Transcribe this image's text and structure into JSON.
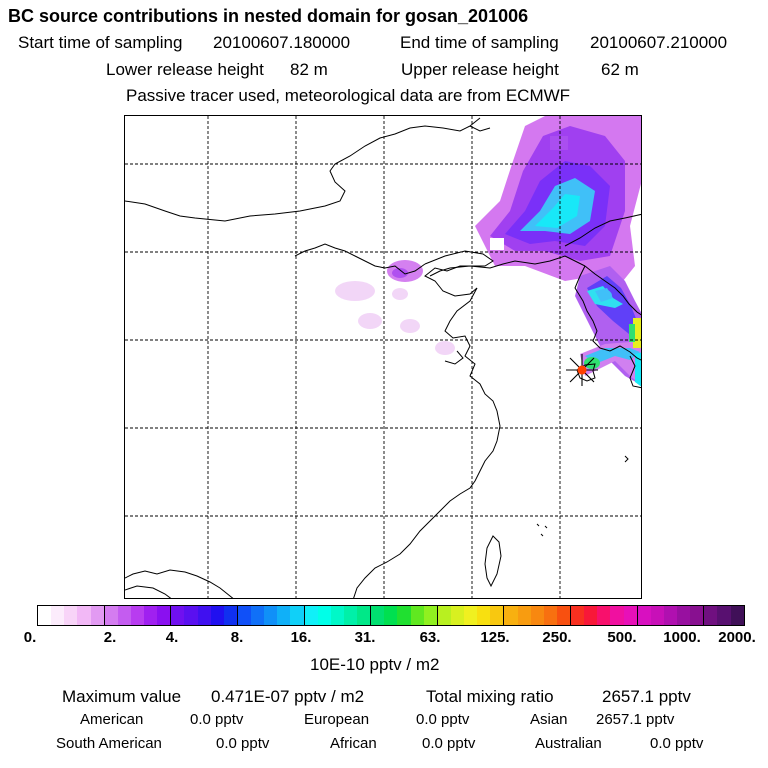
{
  "header": {
    "title": "BC  source contributions in nested domain for gosan_201006",
    "start_label": "Start time of sampling",
    "start_value": "20100607.180000",
    "end_label": "End time of sampling",
    "end_value": "20100607.210000",
    "lower_label": "Lower release height",
    "lower_value": "82 m",
    "upper_label": "Upper release height",
    "upper_value": "62 m",
    "subtitle": "Passive tracer used, meteorological data are from ECMWF"
  },
  "colorbar": {
    "tick_labels": [
      "0.",
      "2.",
      "4.",
      "8.",
      "16.",
      "31.",
      "63.",
      "125.",
      "250.",
      "500.",
      "1000.",
      "2000."
    ],
    "colors": [
      "#ffffff",
      "#fcecfc",
      "#f8d4f8",
      "#f2b8f6",
      "#e29af2",
      "#d47cf0",
      "#c45cf0",
      "#b83cf0",
      "#a020f0",
      "#8a10f0",
      "#7010f0",
      "#5a10f0",
      "#4010f0",
      "#2010f0",
      "#1030f0",
      "#1050f8",
      "#1070f8",
      "#1090f8",
      "#10b0f8",
      "#10d0f8",
      "#10f0f8",
      "#00ffe8",
      "#00f8c8",
      "#00f0a8",
      "#00e888",
      "#00e070",
      "#00e050",
      "#20e030",
      "#60e820",
      "#90f020",
      "#b8f020",
      "#d8f020",
      "#f0f020",
      "#f8e010",
      "#f8c810",
      "#f8b010",
      "#f89c10",
      "#f88810",
      "#f87010",
      "#f85010",
      "#f83020",
      "#f81838",
      "#f8106c",
      "#f010a0",
      "#e810b8",
      "#d810c0",
      "#c810b8",
      "#b010b0",
      "#9810a0",
      "#881090",
      "#701080",
      "#581070",
      "#401058"
    ],
    "units": "10E-10 pptv / m2"
  },
  "summary": {
    "max_label": "Maximum value",
    "max_value": "0.471E-07 pptv / m2",
    "total_label": "Total mixing ratio",
    "total_value": "2657.1 pptv",
    "sources": [
      {
        "name": "American",
        "value": "0.0 pptv"
      },
      {
        "name": "European",
        "value": "0.0 pptv"
      },
      {
        "name": "Asian",
        "value": "2657.1 pptv"
      },
      {
        "name": "South American",
        "value": "0.0 pptv"
      },
      {
        "name": "African",
        "value": "0.0 pptv"
      },
      {
        "name": "Australian",
        "value": "0.0 pptv"
      }
    ]
  },
  "map": {
    "colors": {
      "light_pink": "#ecc0f4",
      "magenta": "#d070f0",
      "purple": "#a040f0",
      "violet": "#7a30f8",
      "cyan": "#18e8f8",
      "light_blue": "#40c0f8",
      "aqua": "#30e0f0",
      "yellow": "#e8f020",
      "green": "#30e070",
      "coast": "#000000",
      "marker": "#ff4000"
    }
  }
}
